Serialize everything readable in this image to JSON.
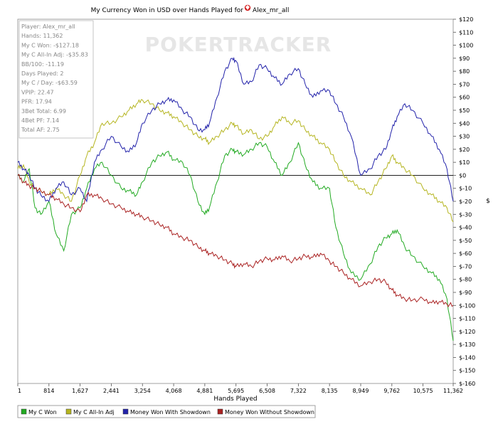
{
  "chart_data": {
    "type": "line",
    "title": "My Currency Won in USD over Hands Played for",
    "player_name": "Alex_mr_all",
    "xlabel": "Hands Played",
    "ylabel": "$",
    "xlim": [
      1,
      11362
    ],
    "ylim": [
      -160,
      120
    ],
    "x_ticks": [
      "1",
      "814",
      "1,627",
      "2,441",
      "3,254",
      "4,068",
      "4,881",
      "5,695",
      "6,508",
      "7,322",
      "8,135",
      "8,949",
      "9,762",
      "10,575",
      "11,362"
    ],
    "y_ticks": [
      "$120",
      "$110",
      "$100",
      "$90",
      "$80",
      "$70",
      "$60",
      "$50",
      "$40",
      "$30",
      "$20",
      "$10",
      "$0",
      "$-10",
      "$-20",
      "$-30",
      "$-40",
      "$-50",
      "$-60",
      "$-70",
      "$-80",
      "$-90",
      "$-100",
      "$-110",
      "$-120",
      "$-130",
      "$-140",
      "$-150",
      "$-160"
    ],
    "watermark": "POKERTRACKER",
    "stats": [
      "Player: Alex_mr_all",
      "Hands: 11,362",
      "My C Won: -$127.18",
      "My C All-In Adj: -$35.83",
      "BB/100: -11.19",
      "Days Played: 2",
      "My C / Day: -$63.59",
      "VPIP: 22.47",
      "PFR: 17.94",
      "3Bet Total: 6.99",
      "4Bet PF: 7.14",
      "Total AF: 2.75"
    ],
    "legend_position": "bottom",
    "series": [
      {
        "name": "My C Won",
        "color": "#22aa22",
        "x": [
          1,
          150,
          300,
          450,
          600,
          814,
          1000,
          1200,
          1400,
          1627,
          1800,
          2000,
          2200,
          2441,
          2700,
          2900,
          3100,
          3254,
          3500,
          3700,
          3900,
          4068,
          4300,
          4500,
          4700,
          4881,
          5000,
          5200,
          5400,
          5600,
          5695,
          5900,
          6100,
          6300,
          6508,
          6700,
          6900,
          7100,
          7322,
          7500,
          7700,
          7900,
          8135,
          8300,
          8500,
          8700,
          8949,
          9200,
          9400,
          9600,
          9762,
          9900,
          10100,
          10300,
          10575,
          10800,
          11000,
          11200,
          11362
        ],
        "y": [
          0,
          -5,
          5,
          -25,
          -30,
          -20,
          -45,
          -58,
          -30,
          -25,
          -10,
          5,
          10,
          0,
          -10,
          -12,
          -15,
          -5,
          10,
          15,
          18,
          12,
          10,
          0,
          -20,
          -30,
          -25,
          -5,
          15,
          20,
          18,
          16,
          20,
          25,
          22,
          10,
          0,
          10,
          25,
          8,
          -5,
          -10,
          -10,
          -40,
          -60,
          -75,
          -80,
          -68,
          -55,
          -48,
          -45,
          -42,
          -55,
          -62,
          -70,
          -75,
          -80,
          -95,
          -127.18
        ]
      },
      {
        "name": "My C All-In Adj",
        "color": "#b5b520",
        "x": [
          1,
          150,
          300,
          450,
          600,
          814,
          1000,
          1200,
          1400,
          1627,
          1800,
          2000,
          2200,
          2441,
          2700,
          2900,
          3100,
          3254,
          3500,
          3700,
          3900,
          4068,
          4300,
          4500,
          4700,
          4881,
          5000,
          5200,
          5400,
          5600,
          5695,
          5900,
          6100,
          6300,
          6508,
          6700,
          6900,
          7100,
          7322,
          7500,
          7700,
          7900,
          8135,
          8300,
          8500,
          8700,
          8949,
          9200,
          9400,
          9600,
          9762,
          9900,
          10100,
          10300,
          10575,
          10800,
          11000,
          11200,
          11362
        ],
        "y": [
          5,
          8,
          -5,
          -10,
          -12,
          -15,
          -10,
          -15,
          -20,
          0,
          15,
          25,
          40,
          40,
          45,
          50,
          55,
          58,
          55,
          50,
          48,
          45,
          40,
          35,
          30,
          28,
          25,
          30,
          35,
          40,
          38,
          32,
          35,
          28,
          30,
          38,
          45,
          40,
          42,
          35,
          30,
          25,
          20,
          10,
          0,
          -5,
          -10,
          -15,
          -5,
          5,
          15,
          10,
          5,
          0,
          -10,
          -15,
          -20,
          -25,
          -35.83
        ]
      },
      {
        "name": "Money Won With Showdown",
        "color": "#2222aa",
        "x": [
          1,
          150,
          300,
          450,
          600,
          814,
          1000,
          1200,
          1400,
          1627,
          1800,
          2000,
          2200,
          2441,
          2700,
          2900,
          3100,
          3254,
          3500,
          3700,
          3900,
          4068,
          4300,
          4500,
          4700,
          4881,
          5000,
          5200,
          5400,
          5600,
          5695,
          5900,
          6100,
          6300,
          6508,
          6700,
          6900,
          7100,
          7322,
          7500,
          7700,
          7900,
          8135,
          8300,
          8500,
          8700,
          8949,
          9200,
          9400,
          9600,
          9762,
          9900,
          10100,
          10300,
          10575,
          10800,
          11000,
          11200,
          11362
        ],
        "y": [
          10,
          5,
          0,
          -10,
          -15,
          -20,
          -10,
          -5,
          -15,
          -10,
          -20,
          10,
          20,
          30,
          22,
          18,
          25,
          40,
          50,
          55,
          58,
          58,
          50,
          45,
          35,
          35,
          40,
          60,
          80,
          90,
          88,
          70,
          72,
          85,
          82,
          75,
          70,
          78,
          82,
          70,
          60,
          65,
          65,
          55,
          45,
          30,
          0,
          5,
          15,
          20,
          35,
          45,
          55,
          50,
          40,
          30,
          20,
          5,
          -20
        ]
      },
      {
        "name": "Money Won Without Showdown",
        "color": "#aa2222",
        "x": [
          1,
          150,
          300,
          450,
          600,
          814,
          1000,
          1200,
          1400,
          1627,
          1800,
          2000,
          2200,
          2441,
          2700,
          2900,
          3100,
          3254,
          3500,
          3700,
          3900,
          4068,
          4300,
          4500,
          4700,
          4881,
          5000,
          5200,
          5400,
          5600,
          5695,
          5900,
          6100,
          6300,
          6508,
          6700,
          6900,
          7100,
          7322,
          7500,
          7700,
          7900,
          8135,
          8300,
          8500,
          8700,
          8949,
          9200,
          9400,
          9600,
          9762,
          9900,
          10100,
          10300,
          10575,
          10800,
          11000,
          11200,
          11362
        ],
        "y": [
          0,
          -5,
          -8,
          -10,
          -12,
          -15,
          -18,
          -22,
          -25,
          -28,
          -15,
          -15,
          -18,
          -22,
          -25,
          -28,
          -30,
          -32,
          -35,
          -38,
          -40,
          -45,
          -48,
          -50,
          -55,
          -58,
          -60,
          -62,
          -65,
          -68,
          -70,
          -68,
          -70,
          -66,
          -64,
          -65,
          -62,
          -66,
          -64,
          -62,
          -63,
          -60,
          -66,
          -70,
          -75,
          -80,
          -85,
          -82,
          -80,
          -82,
          -88,
          -92,
          -95,
          -96,
          -95,
          -98,
          -97,
          -99,
          -100
        ]
      }
    ]
  }
}
